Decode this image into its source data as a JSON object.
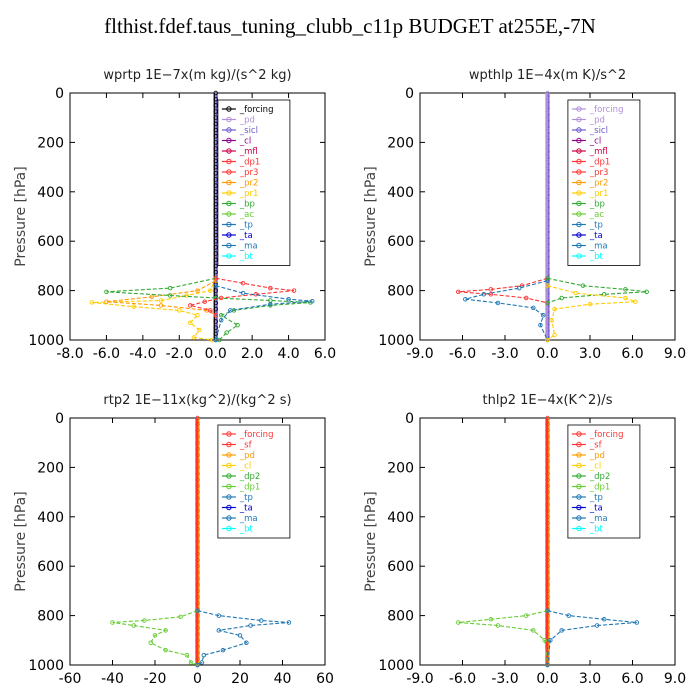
{
  "title": "flthist.fdef.taus_tuning_clubb_c11p  BUDGET at255E,-7N",
  "chart_data": [
    {
      "type": "line",
      "title": "wprtp   1E−7x(m kg)/(s^2 kg)",
      "ylabel": "Pressure [hPa]",
      "xlim": [
        -8,
        6
      ],
      "ylim": [
        1000,
        0
      ],
      "xticks": [
        "-8.0",
        "-6.0",
        "-4.0",
        "-2.0",
        "0.0",
        "2.0",
        "4.0",
        "6.0"
      ],
      "xtick_values": [
        -8,
        -6,
        -4,
        -2,
        0,
        2,
        4,
        6
      ],
      "yticks": [
        "0",
        "200",
        "400",
        "600",
        "800",
        "1000"
      ],
      "legend_position": "top-right",
      "legend": [
        "_forcing",
        "_pd",
        "_sicl",
        "_cl",
        "_mfl",
        "_dp1",
        "_pr3",
        "_pr2",
        "_pr1",
        "_bp",
        "_ac",
        "_tp",
        "_ta",
        "_ma",
        "_bt"
      ],
      "legend_colors": [
        "#000000",
        "#b08fd8",
        "#6a5acd",
        "#8b008b",
        "#cc0044",
        "#ff3333",
        "#ff3333",
        "#ff9900",
        "#ffcc00",
        "#33aa33",
        "#66cc33",
        "#1f77b4",
        "#0000cc",
        "#1f77b4",
        "#00ffff"
      ],
      "series": [
        {
          "name": "_pr1",
          "color": "#ffcc00",
          "points": [
            [
              0,
              750
            ],
            [
              -0.3,
              800
            ],
            [
              -1.6,
              820
            ],
            [
              -3.0,
              840
            ],
            [
              -6.8,
              848
            ],
            [
              -4.5,
              865
            ],
            [
              -2.0,
              880
            ],
            [
              -1.0,
              900
            ],
            [
              -1.4,
              930
            ],
            [
              -0.9,
              960
            ],
            [
              -1.2,
              990
            ],
            [
              -0.2,
              1000
            ]
          ]
        },
        {
          "name": "_pr2",
          "color": "#ff9900",
          "points": [
            [
              0,
              760
            ],
            [
              -1.0,
              800
            ],
            [
              -3.5,
              825
            ],
            [
              -6.0,
              845
            ],
            [
              -3.0,
              860
            ],
            [
              -0.5,
              880
            ],
            [
              0,
              900
            ]
          ]
        },
        {
          "name": "_bp",
          "color": "#33aa33",
          "points": [
            [
              0,
              750
            ],
            [
              -2.5,
              790
            ],
            [
              -6.0,
              805
            ],
            [
              -2.5,
              820
            ],
            [
              0,
              830
            ],
            [
              3.0,
              840
            ],
            [
              5.2,
              848
            ],
            [
              3.0,
              860
            ],
            [
              1.0,
              880
            ],
            [
              0.3,
              900
            ],
            [
              1.2,
              940
            ],
            [
              0.6,
              970
            ],
            [
              0.2,
              1000
            ]
          ]
        },
        {
          "name": "_dp1",
          "color": "#ff3333",
          "points": [
            [
              0,
              750
            ],
            [
              1.5,
              770
            ],
            [
              3.0,
              790
            ],
            [
              4.3,
              800
            ],
            [
              2.2,
              815
            ],
            [
              0.3,
              830
            ],
            [
              -0.6,
              845
            ],
            [
              -1.4,
              860
            ],
            [
              -0.3,
              880
            ],
            [
              0,
              900
            ]
          ]
        },
        {
          "name": "_tp",
          "color": "#1f77b4",
          "points": [
            [
              0,
              780
            ],
            [
              1.5,
              810
            ],
            [
              4.0,
              835
            ],
            [
              5.3,
              843
            ],
            [
              3.0,
              855
            ],
            [
              0.8,
              880
            ],
            [
              0.3,
              920
            ],
            [
              0,
              1000
            ]
          ]
        }
      ]
    },
    {
      "type": "line",
      "title": "wpthlp   1E−4x(m K)/s^2",
      "ylabel": "Pressure [hPa]",
      "xlim": [
        -9,
        9
      ],
      "ylim": [
        1000,
        0
      ],
      "xticks": [
        "-9.0",
        "-6.0",
        "-3.0",
        "0.0",
        "3.0",
        "6.0",
        "9.0"
      ],
      "xtick_values": [
        -9,
        -6,
        -3,
        0,
        3,
        6,
        9
      ],
      "yticks": [
        "0",
        "200",
        "400",
        "600",
        "800",
        "1000"
      ],
      "legend_position": "top-right",
      "legend": [
        "_forcing",
        "_pd",
        "_sicl",
        "_cl",
        "_mfl",
        "_dp1",
        "_pr3",
        "_pr2",
        "_pr1",
        "_bp",
        "_ac",
        "_tp",
        "_ta",
        "_ma",
        "_bt"
      ],
      "legend_colors": [
        "#b08fd8",
        "#b08fd8",
        "#6a5acd",
        "#8b008b",
        "#cc0044",
        "#ff3333",
        "#ff3333",
        "#ff9900",
        "#ffcc00",
        "#33aa33",
        "#66cc33",
        "#1f77b4",
        "#0000cc",
        "#1f77b4",
        "#00ffff"
      ],
      "series": [
        {
          "name": "_dp1",
          "color": "#ff3333",
          "points": [
            [
              0,
              750
            ],
            [
              -1.8,
              780
            ],
            [
              -4.0,
              795
            ],
            [
              -6.3,
              805
            ],
            [
              -4.0,
              815
            ],
            [
              -1.5,
              830
            ],
            [
              0,
              850
            ]
          ]
        },
        {
          "name": "_tp",
          "color": "#1f77b4",
          "points": [
            [
              0,
              760
            ],
            [
              -2.0,
              790
            ],
            [
              -4.5,
              815
            ],
            [
              -5.8,
              835
            ],
            [
              -3.5,
              850
            ],
            [
              -1.0,
              870
            ],
            [
              -0.3,
              900
            ],
            [
              -0.5,
              940
            ],
            [
              0,
              1000
            ]
          ]
        },
        {
          "name": "_bp",
          "color": "#33aa33",
          "points": [
            [
              0,
              750
            ],
            [
              2.5,
              780
            ],
            [
              5.5,
              795
            ],
            [
              7.0,
              805
            ],
            [
              4.0,
              815
            ],
            [
              1.0,
              830
            ],
            [
              0,
              850
            ]
          ]
        },
        {
          "name": "_pr1",
          "color": "#ffcc00",
          "points": [
            [
              0,
              780
            ],
            [
              2.0,
              810
            ],
            [
              5.5,
              830
            ],
            [
              6.2,
              845
            ],
            [
              3.0,
              855
            ],
            [
              0.5,
              875
            ],
            [
              0.3,
              920
            ],
            [
              0.5,
              980
            ],
            [
              0,
              1000
            ]
          ]
        }
      ]
    },
    {
      "type": "line",
      "title": "rtp2   1E−11x(kg^2)/(kg^2 s)",
      "ylabel": "Pressure [hPa]",
      "xlim": [
        -60,
        60
      ],
      "ylim": [
        1000,
        0
      ],
      "xticks": [
        "-60",
        "-40",
        "-20",
        "0",
        "20",
        "40",
        "60"
      ],
      "xtick_values": [
        -60,
        -40,
        -20,
        0,
        20,
        40,
        60
      ],
      "yticks": [
        "0",
        "200",
        "400",
        "600",
        "800",
        "1000"
      ],
      "legend_position": "top-right",
      "legend": [
        "_forcing",
        "_sf",
        "_pd",
        "_cl",
        "_dp2",
        "_dp1",
        "_tp",
        "_ta",
        "_ma",
        "_bt"
      ],
      "legend_colors": [
        "#ff3333",
        "#ff3333",
        "#ff9900",
        "#ffcc00",
        "#33aa33",
        "#66cc33",
        "#1f77b4",
        "#0000cc",
        "#1f77b4",
        "#00ffff"
      ],
      "series": [
        {
          "name": "_dp1",
          "color": "#66cc33",
          "points": [
            [
              0,
              780
            ],
            [
              -8,
              805
            ],
            [
              -25,
              820
            ],
            [
              -40,
              828
            ],
            [
              -30,
              840
            ],
            [
              -15,
              860
            ],
            [
              -20,
              880
            ],
            [
              -22,
              910
            ],
            [
              -15,
              940
            ],
            [
              -5,
              960
            ],
            [
              -3,
              990
            ],
            [
              0,
              1000
            ]
          ]
        },
        {
          "name": "_tp",
          "color": "#1f77b4",
          "points": [
            [
              0,
              780
            ],
            [
              10,
              800
            ],
            [
              30,
              820
            ],
            [
              43,
              828
            ],
            [
              25,
              840
            ],
            [
              10,
              860
            ],
            [
              20,
              880
            ],
            [
              23,
              910
            ],
            [
              12,
              940
            ],
            [
              3,
              960
            ],
            [
              2,
              990
            ],
            [
              0,
              1000
            ]
          ]
        }
      ]
    },
    {
      "type": "line",
      "title": "thlp2   1E−4x(K^2)/s",
      "ylabel": "Pressure [hPa]",
      "xlim": [
        -9,
        9
      ],
      "ylim": [
        1000,
        0
      ],
      "xticks": [
        "-9.0",
        "-6.0",
        "-3.0",
        "0.0",
        "3.0",
        "6.0",
        "9.0"
      ],
      "xtick_values": [
        -9,
        -6,
        -3,
        0,
        3,
        6,
        9
      ],
      "yticks": [
        "0",
        "200",
        "400",
        "600",
        "800",
        "1000"
      ],
      "legend_position": "top-right",
      "legend": [
        "_forcing",
        "_sf",
        "_pd",
        "_cl",
        "_dp2",
        "_dp1",
        "_tp",
        "_ta",
        "_ma",
        "_bt"
      ],
      "legend_colors": [
        "#ff3333",
        "#ff3333",
        "#ff9900",
        "#ffcc00",
        "#33aa33",
        "#66cc33",
        "#1f77b4",
        "#0000cc",
        "#1f77b4",
        "#00ffff"
      ],
      "series": [
        {
          "name": "_dp1",
          "color": "#66cc33",
          "points": [
            [
              0,
              780
            ],
            [
              -1.5,
              800
            ],
            [
              -4.0,
              815
            ],
            [
              -6.3,
              828
            ],
            [
              -3.5,
              840
            ],
            [
              -1.0,
              860
            ],
            [
              -0.2,
              900
            ],
            [
              0,
              1000
            ]
          ]
        },
        {
          "name": "_tp",
          "color": "#1f77b4",
          "points": [
            [
              0,
              780
            ],
            [
              1.5,
              800
            ],
            [
              4.0,
              815
            ],
            [
              6.3,
              828
            ],
            [
              3.5,
              840
            ],
            [
              1.0,
              860
            ],
            [
              0.2,
              900
            ],
            [
              0,
              1000
            ]
          ]
        }
      ]
    }
  ]
}
